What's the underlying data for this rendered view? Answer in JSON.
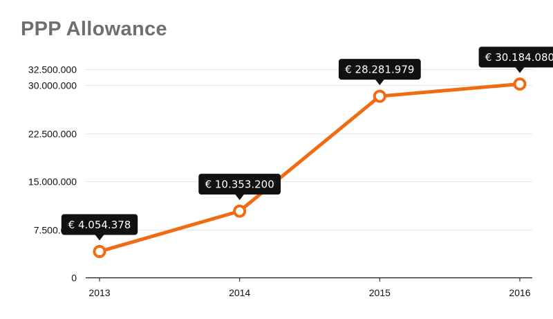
{
  "chart_data": {
    "type": "line",
    "title": "PPP Allowance",
    "categories": [
      "2013",
      "2014",
      "2015",
      "2016"
    ],
    "values": [
      4054378,
      10353200,
      28281979,
      30184080
    ],
    "data_labels": [
      "€ 4.054.378",
      "€ 10.353.200",
      "€ 28.281.979",
      "€ 30.184.080"
    ],
    "y_ticks": [
      0,
      7500000,
      15000000,
      22500000,
      30000000,
      32500000
    ],
    "y_tick_labels": [
      "0",
      "7.500.000",
      "15.000.000",
      "22.500.000",
      "30.000.000",
      "32.500.000"
    ],
    "ylim": [
      0,
      32500000
    ],
    "grid": true,
    "line_color": "#f26a12",
    "label_bg_color": "#111111",
    "label_text_color": "#ffffff"
  }
}
